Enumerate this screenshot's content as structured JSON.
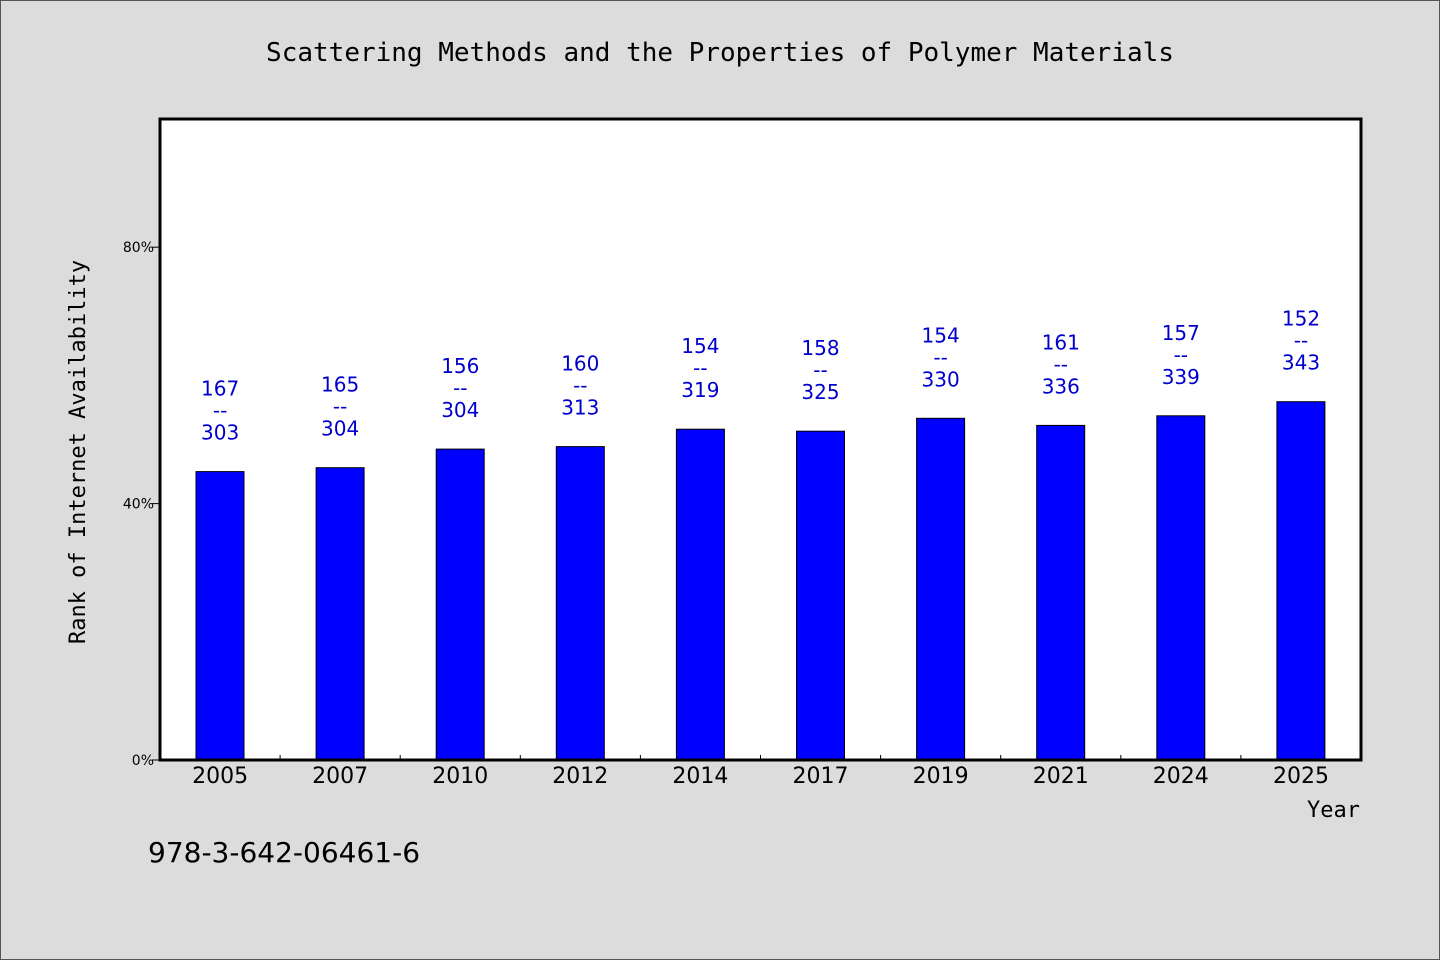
{
  "chart_data": {
    "type": "bar",
    "title": "Scattering Methods and the Properties of Polymer Materials",
    "xlabel": "Year",
    "ylabel": "Rank of Internet Availability",
    "categories": [
      "2005",
      "2007",
      "2010",
      "2012",
      "2014",
      "2017",
      "2019",
      "2021",
      "2024",
      "2025"
    ],
    "values": [
      45.0,
      45.6,
      48.5,
      48.9,
      51.6,
      51.3,
      53.3,
      52.2,
      53.7,
      55.9
    ],
    "bar_labels": [
      [
        "167",
        "--",
        "303"
      ],
      [
        "165",
        "--",
        "304"
      ],
      [
        "156",
        "--",
        "304"
      ],
      [
        "160",
        "--",
        "313"
      ],
      [
        "154",
        "--",
        "319"
      ],
      [
        "158",
        "--",
        "325"
      ],
      [
        "154",
        "--",
        "330"
      ],
      [
        "161",
        "--",
        "336"
      ],
      [
        "157",
        "--",
        "339"
      ],
      [
        "152",
        "--",
        "343"
      ]
    ],
    "yticks": [
      0,
      40,
      80
    ],
    "ytick_labels": [
      "0%",
      "40%",
      "80%"
    ],
    "ylim": [
      0,
      100
    ],
    "grid": false,
    "bar_color": "#0000ff",
    "label_color": "#0000cc"
  },
  "footnote": "978-3-642-06461-6"
}
